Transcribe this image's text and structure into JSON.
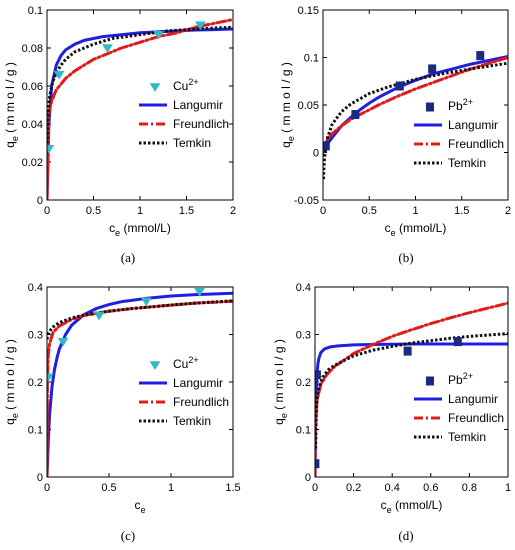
{
  "figure": {
    "panels": [
      {
        "id": "a",
        "label": "(a)"
      },
      {
        "id": "b",
        "label": "(b)"
      },
      {
        "id": "c",
        "label": "(c)"
      },
      {
        "id": "d",
        "label": "(d)"
      }
    ]
  },
  "chart_data": [
    {
      "type": "line",
      "panel": "(a)",
      "xlabel_main": "c",
      "xlabel_sub": "e",
      "xlabel_rest": "  (mmol/L)",
      "ylabel_main": "q",
      "ylabel_sub": "e",
      "ylabel_rest": "  ( m m o l / g )",
      "xlim": [
        0,
        2
      ],
      "ylim": [
        0,
        0.1
      ],
      "xticks": [
        0,
        0.5,
        1,
        1.5,
        2
      ],
      "xtick_labels": [
        "0",
        "0.5",
        "1",
        "1.5",
        "2"
      ],
      "yticks": [
        0,
        0.02,
        0.04,
        0.06,
        0.08,
        0.1
      ],
      "ytick_labels": [
        "0",
        "0.02",
        "0.04",
        "0.06",
        "0.08",
        "0.1"
      ],
      "legend": {
        "position": "right",
        "entries": [
          {
            "base": "Cu",
            "sup": "2+",
            "style": "triangle",
            "color": "#33b8c4"
          },
          {
            "base": "Langumir",
            "sup": "",
            "style": "solid",
            "color": "#1f1fe0"
          },
          {
            "base": "Freundlich",
            "sup": "",
            "style": "dashdot",
            "color": "#e01b1b"
          },
          {
            "base": "Temkin",
            "sup": "",
            "style": "dotted",
            "color": "#111111"
          }
        ]
      },
      "marker": "triangle",
      "experimental": {
        "x": [
          0.02,
          0.13,
          0.65,
          1.2,
          1.65
        ],
        "y": [
          0.027,
          0.066,
          0.08,
          0.087,
          0.092
        ]
      },
      "series": [
        {
          "name": "Langumir",
          "style": "solid",
          "color": "#1f1fe0",
          "x": [
            0,
            0.02,
            0.05,
            0.1,
            0.15,
            0.2,
            0.3,
            0.4,
            0.5,
            0.6,
            0.8,
            1.0,
            1.2,
            1.4,
            1.6,
            1.8,
            2.0
          ],
          "y": [
            0,
            0.04,
            0.06,
            0.071,
            0.076,
            0.079,
            0.082,
            0.084,
            0.085,
            0.086,
            0.087,
            0.088,
            0.0885,
            0.089,
            0.0895,
            0.0897,
            0.09
          ]
        },
        {
          "name": "Freundlich",
          "style": "dashdot",
          "color": "#e01b1b",
          "x": [
            0,
            0.02,
            0.05,
            0.1,
            0.2,
            0.3,
            0.4,
            0.5,
            0.6,
            0.8,
            1.0,
            1.2,
            1.4,
            1.6,
            1.8,
            2.0
          ],
          "y": [
            0,
            0.046,
            0.052,
            0.058,
            0.064,
            0.068,
            0.071,
            0.074,
            0.076,
            0.08,
            0.083,
            0.086,
            0.088,
            0.091,
            0.093,
            0.095
          ]
        },
        {
          "name": "Temkin",
          "style": "dotted",
          "color": "#111111",
          "x": [
            0,
            0.01,
            0.03,
            0.06,
            0.1,
            0.15,
            0.2,
            0.3,
            0.5,
            0.7,
            1.0,
            1.3,
            1.6,
            2.0
          ],
          "y": [
            0.025,
            0.045,
            0.055,
            0.062,
            0.067,
            0.071,
            0.074,
            0.078,
            0.082,
            0.085,
            0.087,
            0.089,
            0.09,
            0.091
          ]
        }
      ]
    },
    {
      "type": "line",
      "panel": "(b)",
      "xlabel_main": "c",
      "xlabel_sub": "e",
      "xlabel_rest": "  (mmol/L)",
      "ylabel_main": "q",
      "ylabel_sub": "e",
      "ylabel_rest": "  ( m m o l / g )",
      "xlim": [
        0,
        2
      ],
      "ylim": [
        -0.05,
        0.15
      ],
      "xticks": [
        0,
        0.5,
        1,
        1.5,
        2
      ],
      "xtick_labels": [
        "0",
        "0.5",
        "1",
        "1.5",
        "2"
      ],
      "yticks": [
        -0.05,
        0,
        0.05,
        0.1,
        0.15
      ],
      "ytick_labels": [
        "-0.05",
        "0",
        "0.05",
        "0.1",
        "0.15"
      ],
      "legend": {
        "position": "right",
        "entries": [
          {
            "base": "Pb",
            "sup": "2+",
            "style": "square",
            "color": "#1a2a80"
          },
          {
            "base": "Langumir",
            "sup": "",
            "style": "solid",
            "color": "#1f1fe0"
          },
          {
            "base": "Freundlich",
            "sup": "",
            "style": "dashdot",
            "color": "#e01b1b"
          },
          {
            "base": "Temkin",
            "sup": "",
            "style": "dotted",
            "color": "#111111"
          }
        ]
      },
      "marker": "square",
      "experimental": {
        "x": [
          0.03,
          0.35,
          0.83,
          1.18,
          1.7
        ],
        "y": [
          0.007,
          0.04,
          0.07,
          0.088,
          0.102
        ]
      },
      "series": [
        {
          "name": "Langumir",
          "style": "solid",
          "color": "#1f1fe0",
          "x": [
            0,
            0.05,
            0.1,
            0.2,
            0.3,
            0.4,
            0.5,
            0.6,
            0.8,
            1.0,
            1.2,
            1.4,
            1.6,
            1.8,
            2.0
          ],
          "y": [
            0,
            0.009,
            0.016,
            0.028,
            0.037,
            0.045,
            0.052,
            0.058,
            0.068,
            0.076,
            0.083,
            0.088,
            0.093,
            0.097,
            0.101
          ]
        },
        {
          "name": "Freundlich",
          "style": "dashdot",
          "color": "#e01b1b",
          "x": [
            0,
            0.05,
            0.1,
            0.2,
            0.3,
            0.4,
            0.5,
            0.6,
            0.8,
            1.0,
            1.2,
            1.4,
            1.6,
            1.8,
            2.0
          ],
          "y": [
            0,
            0.014,
            0.02,
            0.028,
            0.035,
            0.04,
            0.045,
            0.05,
            0.059,
            0.067,
            0.074,
            0.081,
            0.088,
            0.094,
            0.1
          ]
        },
        {
          "name": "Temkin",
          "style": "dotted",
          "color": "#111111",
          "x": [
            0.005,
            0.01,
            0.02,
            0.05,
            0.1,
            0.2,
            0.3,
            0.5,
            0.7,
            1.0,
            1.3,
            1.6,
            2.0
          ],
          "y": [
            -0.028,
            -0.015,
            -0.002,
            0.016,
            0.03,
            0.043,
            0.051,
            0.062,
            0.069,
            0.077,
            0.083,
            0.088,
            0.094
          ]
        }
      ]
    },
    {
      "type": "line",
      "panel": "(c)",
      "xlabel_main": "c",
      "xlabel_sub": "e",
      "xlabel_rest": "",
      "ylabel_main": "q",
      "ylabel_sub": "e",
      "ylabel_rest": "  ( m m o l / g )",
      "xlim": [
        0,
        1.5
      ],
      "ylim": [
        0,
        0.4
      ],
      "xticks": [
        0,
        0.5,
        1,
        1.5
      ],
      "xtick_labels": [
        "0",
        "0.5",
        "1",
        "1.5"
      ],
      "yticks": [
        0,
        0.1,
        0.2,
        0.3,
        0.4
      ],
      "ytick_labels": [
        "0",
        "0.1",
        "0.2",
        "0.3",
        "0.4"
      ],
      "legend": {
        "position": "right",
        "entries": [
          {
            "base": "Cu",
            "sup": "2+",
            "style": "triangle",
            "color": "#33b8c4"
          },
          {
            "base": "Langumir",
            "sup": "",
            "style": "solid",
            "color": "#1f1fe0"
          },
          {
            "base": "Freundlich",
            "sup": "",
            "style": "dashdot",
            "color": "#e01b1b"
          },
          {
            "base": "Temkin",
            "sup": "",
            "style": "dotted",
            "color": "#111111"
          }
        ]
      },
      "marker": "triangle",
      "experimental": {
        "x": [
          0.01,
          0.13,
          0.42,
          0.8,
          1.23
        ],
        "y": [
          0.21,
          0.285,
          0.34,
          0.37,
          0.39
        ]
      },
      "series": [
        {
          "name": "Langumir",
          "style": "solid",
          "color": "#1f1fe0",
          "x": [
            0,
            0.01,
            0.02,
            0.04,
            0.06,
            0.08,
            0.1,
            0.15,
            0.2,
            0.3,
            0.4,
            0.5,
            0.6,
            0.8,
            1.0,
            1.2,
            1.5
          ],
          "y": [
            0,
            0.07,
            0.13,
            0.19,
            0.225,
            0.25,
            0.27,
            0.3,
            0.32,
            0.342,
            0.355,
            0.363,
            0.369,
            0.376,
            0.381,
            0.384,
            0.387
          ]
        },
        {
          "name": "Freundlich",
          "style": "dashdot",
          "color": "#e01b1b",
          "x": [
            0,
            0.003,
            0.01,
            0.02,
            0.05,
            0.1,
            0.2,
            0.3,
            0.5,
            0.7,
            1.0,
            1.2,
            1.5
          ],
          "y": [
            0,
            0.2,
            0.255,
            0.28,
            0.305,
            0.318,
            0.332,
            0.34,
            0.349,
            0.355,
            0.362,
            0.366,
            0.37
          ]
        },
        {
          "name": "Temkin",
          "style": "dotted",
          "color": "#111111",
          "x": [
            0,
            0.01,
            0.03,
            0.05,
            0.1,
            0.2,
            0.3,
            0.5,
            0.7,
            1.0,
            1.2,
            1.5
          ],
          "y": [
            0.29,
            0.3,
            0.31,
            0.316,
            0.325,
            0.335,
            0.341,
            0.349,
            0.355,
            0.362,
            0.366,
            0.371
          ]
        }
      ]
    },
    {
      "type": "line",
      "panel": "(d)",
      "xlabel_main": "c",
      "xlabel_sub": "e",
      "xlabel_rest": "  (mmol/L)",
      "ylabel_main": "q",
      "ylabel_sub": "e",
      "ylabel_rest": "  ( m m o l / g )",
      "xlim": [
        0,
        1
      ],
      "ylim": [
        0,
        0.4
      ],
      "xticks": [
        0,
        0.2,
        0.4,
        0.6,
        0.8,
        1
      ],
      "xtick_labels": [
        "0",
        "0.2",
        "0.4",
        "0.6",
        "0.8",
        "1"
      ],
      "yticks": [
        0,
        0.1,
        0.2,
        0.3,
        0.4
      ],
      "ytick_labels": [
        "0",
        "0.1",
        "0.2",
        "0.3",
        "0.4"
      ],
      "legend": {
        "position": "right",
        "entries": [
          {
            "base": "Pb",
            "sup": "2+",
            "style": "square",
            "color": "#1a2a80"
          },
          {
            "base": "Langumir",
            "sup": "",
            "style": "solid",
            "color": "#1f1fe0"
          },
          {
            "base": "Freundlich",
            "sup": "",
            "style": "dashdot",
            "color": "#e01b1b"
          },
          {
            "base": "Temkin",
            "sup": "",
            "style": "dotted",
            "color": "#111111"
          }
        ]
      },
      "marker": "square",
      "experimental": {
        "x": [
          0.002,
          0.01,
          0.48,
          0.74
        ],
        "y": [
          0.028,
          0.215,
          0.265,
          0.285
        ]
      },
      "series": [
        {
          "name": "Langumir",
          "style": "solid",
          "color": "#1f1fe0",
          "x": [
            0,
            0.003,
            0.006,
            0.01,
            0.015,
            0.02,
            0.03,
            0.05,
            0.08,
            0.12,
            0.2,
            0.3,
            0.5,
            0.7,
            1.0
          ],
          "y": [
            0,
            0.12,
            0.18,
            0.215,
            0.238,
            0.25,
            0.262,
            0.27,
            0.274,
            0.276,
            0.278,
            0.279,
            0.28,
            0.28,
            0.28
          ]
        },
        {
          "name": "Freundlich",
          "style": "dashdot",
          "color": "#e01b1b",
          "x": [
            0,
            0.002,
            0.01,
            0.03,
            0.06,
            0.1,
            0.2,
            0.3,
            0.4,
            0.5,
            0.6,
            0.7,
            0.8,
            0.9,
            1.0
          ],
          "y": [
            0,
            0.1,
            0.16,
            0.195,
            0.215,
            0.232,
            0.26,
            0.279,
            0.296,
            0.31,
            0.323,
            0.335,
            0.346,
            0.356,
            0.366
          ]
        },
        {
          "name": "Temkin",
          "style": "dotted",
          "color": "#111111",
          "x": [
            0.003,
            0.006,
            0.01,
            0.02,
            0.04,
            0.07,
            0.1,
            0.2,
            0.3,
            0.4,
            0.5,
            0.6,
            0.7,
            0.8,
            0.9,
            1.0
          ],
          "y": [
            0.06,
            0.13,
            0.16,
            0.19,
            0.21,
            0.226,
            0.235,
            0.255,
            0.267,
            0.275,
            0.282,
            0.287,
            0.292,
            0.296,
            0.299,
            0.302
          ]
        }
      ]
    }
  ]
}
